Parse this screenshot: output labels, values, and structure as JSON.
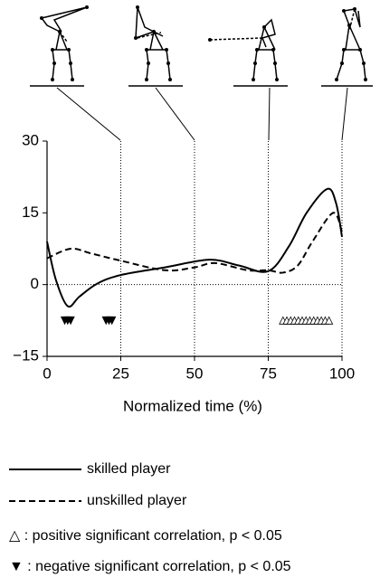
{
  "chart_data": {
    "type": "line",
    "xlabel": "Normalized time (%)",
    "xlim": [
      0,
      100
    ],
    "xticks": [
      0,
      25,
      50,
      75,
      100
    ],
    "ylim": [
      -15,
      30
    ],
    "yticks": [
      {
        "value": -15,
        "label": "−15"
      },
      0,
      15,
      30
    ],
    "phase_lines": [
      25,
      50,
      75,
      100
    ],
    "series": [
      {
        "name": "skilled player",
        "color": "#000000",
        "dash": "solid",
        "x": [
          0,
          3,
          7,
          11,
          17,
          25,
          40,
          55,
          65,
          75,
          82,
          88,
          95,
          98,
          100
        ],
        "values": [
          9,
          1,
          -4.5,
          -2.5,
          0.2,
          2,
          3.6,
          5.2,
          4,
          2.8,
          8,
          15,
          20,
          17,
          10
        ]
      },
      {
        "name": "unskilled player",
        "color": "#000000",
        "dash": "dashed",
        "x": [
          0,
          8,
          15,
          25,
          40,
          50,
          57,
          68,
          75,
          80,
          85,
          90,
          97,
          100
        ],
        "values": [
          5.5,
          7.5,
          6.5,
          5,
          3,
          3.6,
          4.5,
          3,
          3,
          2.5,
          4,
          9,
          15,
          11
        ]
      }
    ],
    "negative_markers": {
      "x": [
        6,
        7,
        8,
        20,
        21,
        22
      ],
      "y": [
        -7.5,
        -7.5,
        -7.5,
        -7.5,
        -7.5,
        -7.5
      ]
    },
    "positive_markers": {
      "x": [
        80,
        81.3,
        82.6,
        83.9,
        85.2,
        86.5,
        87.8,
        89.1,
        90.4,
        91.7,
        93,
        94.3,
        95.6
      ],
      "y": [
        -7.5,
        -7.5,
        -7.5,
        -7.5,
        -7.5,
        -7.5,
        -7.5,
        -7.5,
        -7.5,
        -7.5,
        -7.5,
        -7.5,
        -7.5
      ]
    },
    "notes": [
      "△ : positive significant correlation, p < 0.05",
      "▼ : negative significant correlation, p < 0.05"
    ]
  }
}
